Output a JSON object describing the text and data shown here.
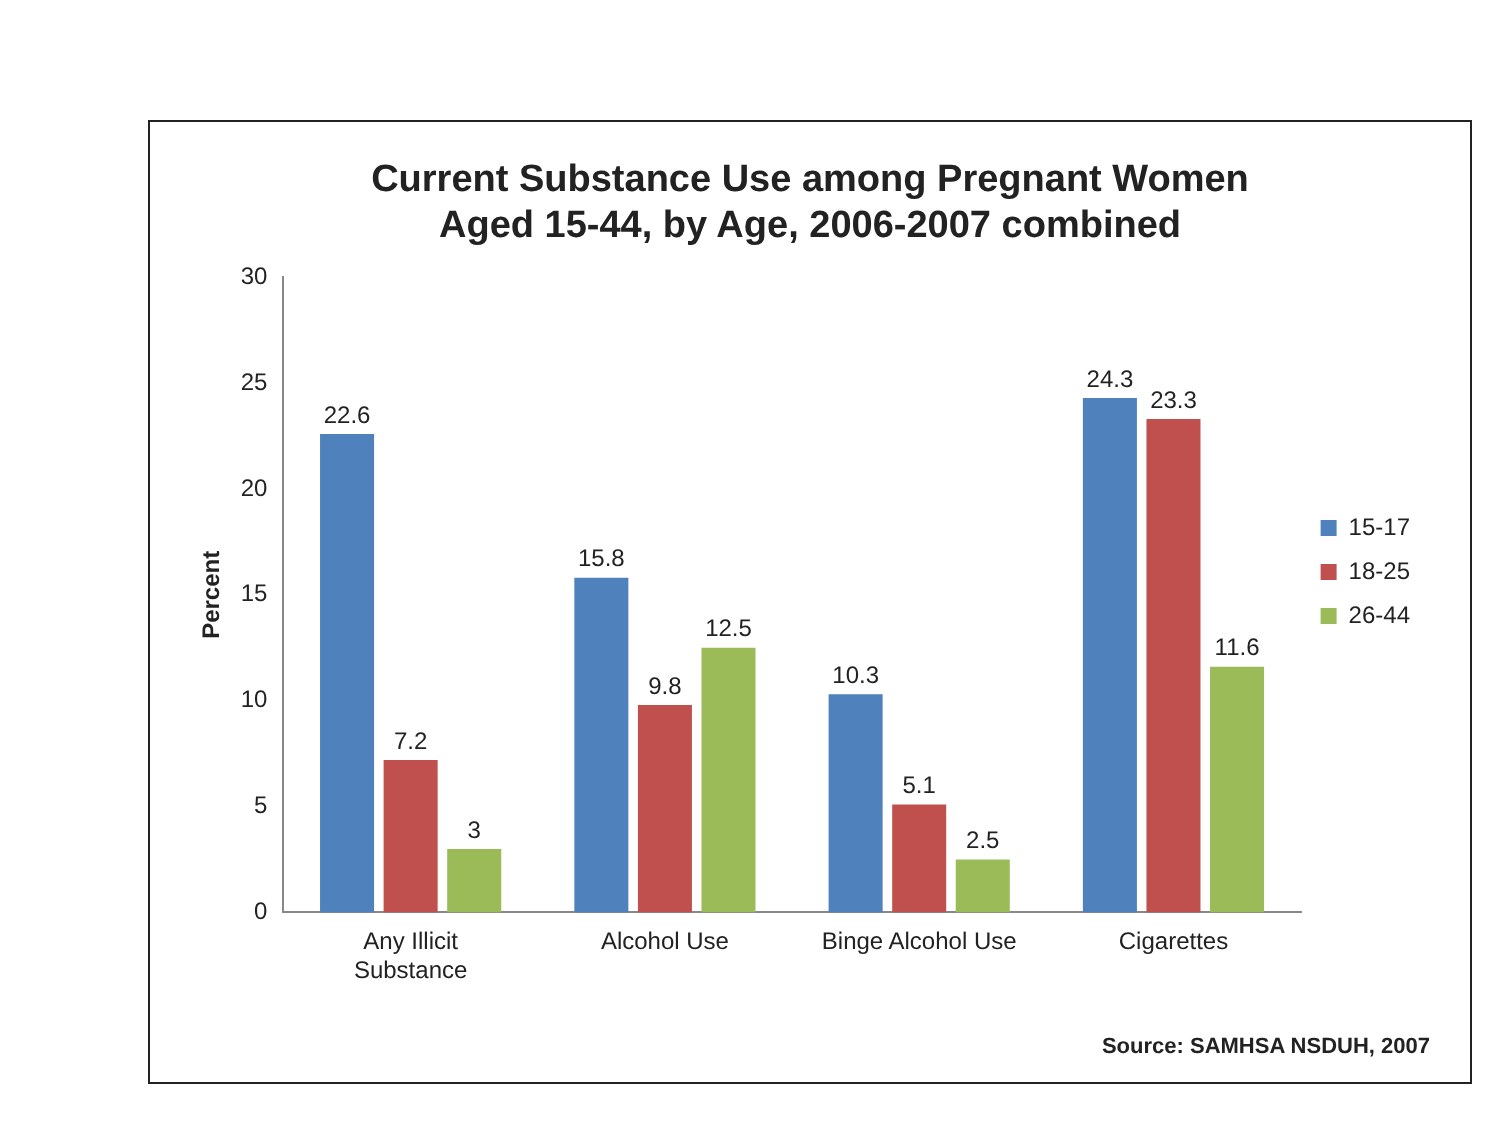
{
  "chart_data": {
    "type": "bar",
    "title": "Current Substance Use among Pregnant Women\nAged 15-44, by Age, 2006-2007 combined",
    "ylabel": "Percent",
    "categories": [
      "Any Illicit\nSubstance",
      "Alcohol Use",
      "Binge Alcohol Use",
      "Cigarettes"
    ],
    "series": [
      {
        "name": "15-17",
        "color": "#4f81bd",
        "values": [
          22.6,
          15.8,
          10.3,
          24.3
        ]
      },
      {
        "name": "18-25",
        "color": "#c0504d",
        "values": [
          7.2,
          9.8,
          5.1,
          23.3
        ]
      },
      {
        "name": "26-44",
        "color": "#9bbb59",
        "values": [
          3,
          12.5,
          2.5,
          11.6
        ]
      }
    ],
    "ylim": [
      0,
      30
    ],
    "yticks": [
      0,
      5,
      10,
      15,
      20,
      25,
      30
    ],
    "grid": false,
    "legend": "right",
    "data_labels": true,
    "annotations": [
      "Source: SAMHSA NSDUH, 2007"
    ]
  }
}
